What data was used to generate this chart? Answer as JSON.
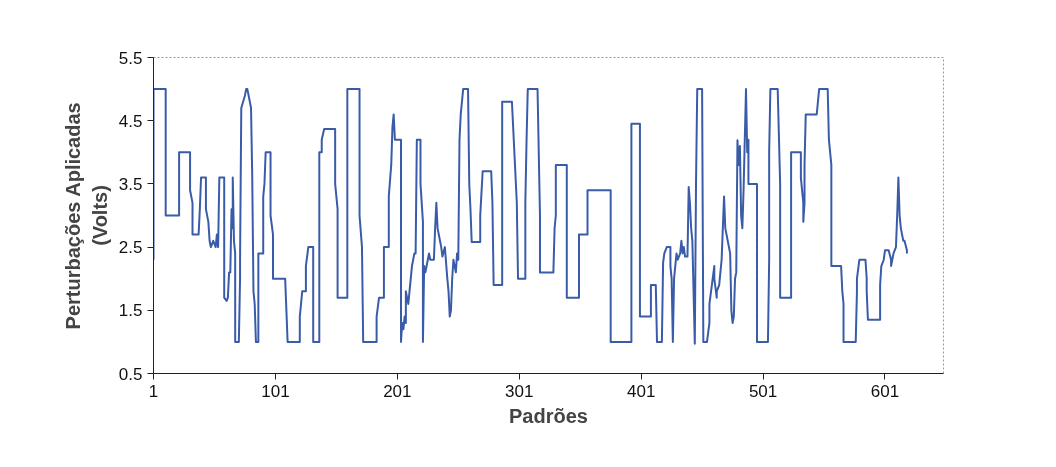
{
  "chart_data": {
    "type": "line",
    "xlabel": "Padrões",
    "ylabel": "Perturbações Aplicadas\n(Volts)",
    "color": "#3a5ca8",
    "xlim": [
      1,
      649
    ],
    "xticks": [
      1,
      101,
      201,
      301,
      401,
      501,
      601
    ],
    "ylim": [
      0.5,
      5.5
    ],
    "yticks": [
      0.5,
      1.5,
      2.5,
      3.5,
      4.5,
      5.5
    ],
    "grid": false,
    "marker": "none",
    "line_style": "solid",
    "x": [
      1,
      1,
      11,
      11,
      22,
      22,
      31,
      31,
      33,
      33,
      38,
      39,
      40,
      44,
      44,
      46,
      47,
      48,
      50,
      52,
      53,
      54,
      55,
      59,
      59,
      61,
      62,
      63,
      64,
      65,
      66,
      66,
      67,
      68,
      68,
      71,
      72,
      72,
      73,
      76,
      77,
      78,
      81,
      82,
      83,
      84,
      85,
      87,
      87,
      91,
      91,
      92,
      93,
      97,
      97,
      99,
      99,
      109,
      110,
      111,
      121,
      121,
      123,
      126,
      126,
      128,
      132,
      132,
      137,
      137,
      139,
      139,
      141,
      150,
      150,
      152,
      152,
      160,
      160,
      170,
      170,
      172,
      173,
      184,
      184,
      186,
      190,
      190,
      194,
      194,
      196,
      197,
      198,
      199,
      204,
      204,
      205,
      206,
      207,
      208,
      208,
      210,
      211,
      213,
      215,
      216,
      217,
      220,
      220,
      222,
      222,
      223,
      224,
      226,
      227,
      228,
      231,
      232,
      233,
      234,
      236,
      237,
      238,
      240,
      242,
      243,
      244,
      245,
      246,
      247,
      249,
      250,
      251,
      252,
      253,
      255,
      259,
      260,
      261,
      262,
      269,
      269,
      271,
      278,
      279,
      280,
      287,
      287,
      295,
      297,
      299,
      300,
      306,
      306,
      307,
      308,
      316,
      318,
      318,
      329,
      330,
      331,
      331,
      340,
      340,
      350,
      350,
      357,
      357,
      376,
      376,
      393,
      393,
      400,
      400,
      409,
      409,
      413,
      414,
      418,
      419,
      420,
      422,
      425,
      425,
      426,
      427,
      428,
      429,
      430,
      431,
      433,
      434,
      435,
      436,
      437,
      439,
      440,
      441,
      442,
      443,
      445,
      446,
      447,
      451,
      452,
      455,
      457,
      457,
      459,
      461,
      461,
      463,
      463,
      465,
      466,
      467,
      468,
      469,
      470,
      472,
      474,
      475,
      476,
      477,
      478,
      479,
      480,
      481,
      482,
      483,
      484,
      485,
      487,
      488,
      489,
      489,
      496,
      496,
      505,
      506,
      506,
      507,
      513,
      515,
      515,
      524,
      524,
      532,
      532,
      534,
      534,
      535,
      535,
      536,
      545,
      546,
      547,
      554,
      555,
      557,
      557,
      565,
      566,
      567,
      567,
      577,
      578,
      578,
      580,
      585,
      586,
      586,
      587,
      597,
      597,
      598,
      600,
      601,
      604,
      606,
      606,
      608,
      610,
      611,
      612,
      613,
      614,
      616,
      617,
      619,
      619
    ],
    "values": [
      2.3,
      5.0,
      5.0,
      3.0,
      3.0,
      4.0,
      4.0,
      3.4,
      3.2,
      2.7,
      2.7,
      3.1,
      3.6,
      3.6,
      3.1,
      2.9,
      2.6,
      2.5,
      2.6,
      2.5,
      2.7,
      2.5,
      3.6,
      3.6,
      1.7,
      1.65,
      1.7,
      2.1,
      2.1,
      3.1,
      2.8,
      3.6,
      2.6,
      2.4,
      1.0,
      1.0,
      2.0,
      2.3,
      4.7,
      4.9,
      5.0,
      5.0,
      4.7,
      3.6,
      1.8,
      1.6,
      1.0,
      1.0,
      2.4,
      2.4,
      3.3,
      3.5,
      4.0,
      4.0,
      3.0,
      2.7,
      2.0,
      2.0,
      1.5,
      1.0,
      1.0,
      1.4,
      1.8,
      1.8,
      2.2,
      2.5,
      2.5,
      1.0,
      1.0,
      4.0,
      4.0,
      4.2,
      4.37,
      4.37,
      3.5,
      3.1,
      1.7,
      1.7,
      5.0,
      5.0,
      3.0,
      2.5,
      1.0,
      1.0,
      1.4,
      1.7,
      1.7,
      2.5,
      2.5,
      3.3,
      3.8,
      4.4,
      4.6,
      4.2,
      4.2,
      1.0,
      1.3,
      1.2,
      1.4,
      1.3,
      1.8,
      1.6,
      1.8,
      2.2,
      2.4,
      2.4,
      4.2,
      4.2,
      3.5,
      2.9,
      1.0,
      2.2,
      2.1,
      2.3,
      2.4,
      2.3,
      2.3,
      2.8,
      3.2,
      2.8,
      2.6,
      2.5,
      2.35,
      2.5,
      2.0,
      1.8,
      1.4,
      1.5,
      2.0,
      2.3,
      2.1,
      2.4,
      2.3,
      4.2,
      4.6,
      5.0,
      5.0,
      3.5,
      3.1,
      2.58,
      2.58,
      3.0,
      3.7,
      3.7,
      3.2,
      1.9,
      1.9,
      4.8,
      4.8,
      4.0,
      3.2,
      2.0,
      2.0,
      3.2,
      4.2,
      5.0,
      5.0,
      3.0,
      2.1,
      2.1,
      2.8,
      3.0,
      3.8,
      3.8,
      1.7,
      1.7,
      2.7,
      2.7,
      3.4,
      3.4,
      1.0,
      1.0,
      4.45,
      4.45,
      1.4,
      1.4,
      1.9,
      1.9,
      1.0,
      1.0,
      2.25,
      2.4,
      2.5,
      2.5,
      2.2,
      2.0,
      1.0,
      2.0,
      2.2,
      2.4,
      2.3,
      2.4,
      2.6,
      2.4,
      2.5,
      2.35,
      2.35,
      3.45,
      3.2,
      2.8,
      2.6,
      0.97,
      3.5,
      5.0,
      5.0,
      1.0,
      1.0,
      1.3,
      1.6,
      1.9,
      2.2,
      2.0,
      1.7,
      1.8,
      1.9,
      2.1,
      2.3,
      2.8,
      3.3,
      2.8,
      2.6,
      2.4,
      1.5,
      1.3,
      1.4,
      2.0,
      2.1,
      4.19,
      3.8,
      4.1,
      3.0,
      2.8,
      3.4,
      5.0,
      4.0,
      4.2,
      3.5,
      3.5,
      1.0,
      1.0,
      2.3,
      4.0,
      5.0,
      5.0,
      3.5,
      1.7,
      1.7,
      4.0,
      4.0,
      3.6,
      3.2,
      2.9,
      3.2,
      3.8,
      4.6,
      4.6,
      4.8,
      5.0,
      5.0,
      4.2,
      3.8,
      2.2,
      2.2,
      1.8,
      1.6,
      1.0,
      1.0,
      1.8,
      2.0,
      2.3,
      2.3,
      2.0,
      1.8,
      1.35,
      1.35,
      1.9,
      2.2,
      2.3,
      2.45,
      2.45,
      2.3,
      2.2,
      2.4,
      2.5,
      3.0,
      3.6,
      3.0,
      2.8,
      2.6,
      2.6,
      2.45,
      2.4
    ]
  }
}
